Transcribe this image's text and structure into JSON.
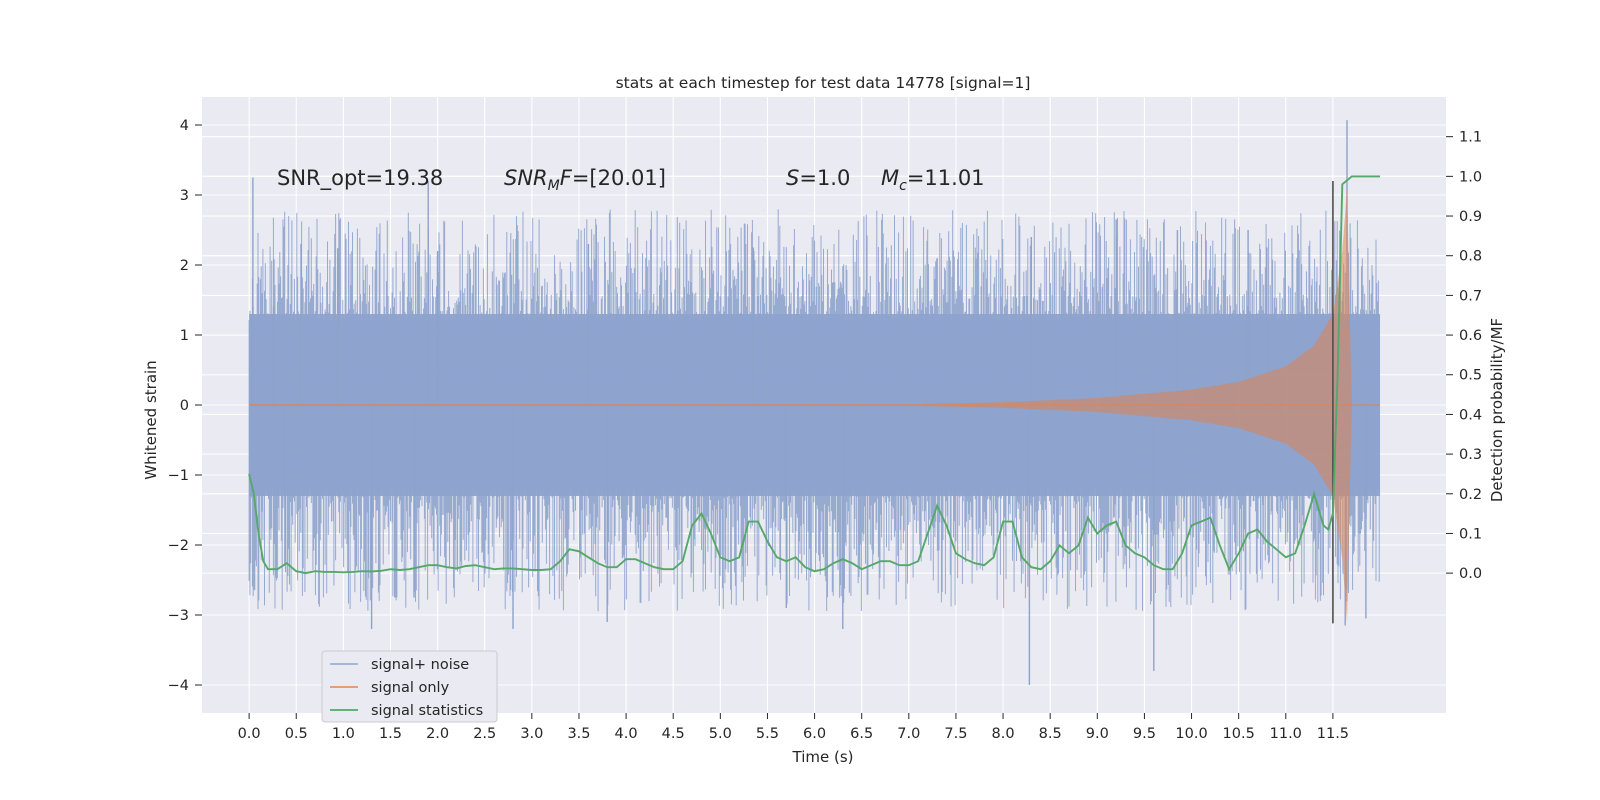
{
  "chart_data": {
    "type": "line",
    "title": "stats at each timestep for test data 14778 [signal=1]",
    "xlabel": "Time (s)",
    "ylabel": "Whitened strain",
    "ylabel_right": "Detection probability/MF",
    "xlim": [
      -0.5,
      12.7
    ],
    "ylim": [
      -4.4,
      4.4
    ],
    "ylim_right": [
      -0.3525,
      1.2
    ],
    "x_ticks": [
      0.0,
      0.5,
      1.0,
      1.5,
      2.0,
      2.5,
      3.0,
      3.5,
      4.0,
      4.5,
      5.0,
      5.5,
      6.0,
      6.5,
      7.0,
      7.5,
      8.0,
      8.5,
      9.0,
      9.5,
      10.0,
      10.5,
      11.0,
      11.5
    ],
    "x_tick_labels": [
      "0.0",
      "0.5",
      "1.0",
      "1.5",
      "2.0",
      "2.5",
      "3.0",
      "3.5",
      "4.0",
      "4.5",
      "5.0",
      "5.5",
      "6.0",
      "6.5",
      "7.0",
      "7.5",
      "8.0",
      "8.5",
      "9.0",
      "9.5",
      "10.0",
      "10.5",
      "11.0",
      "11.5"
    ],
    "y_ticks": [
      4,
      3,
      2,
      1,
      0,
      -1,
      -2,
      -3,
      -4
    ],
    "y_tick_labels": [
      "4",
      "3",
      "2",
      "1",
      "0",
      "−1",
      "−2",
      "−3",
      "−4"
    ],
    "y_right_ticks": [
      1.1,
      1.0,
      0.9,
      0.8,
      0.7,
      0.6,
      0.5,
      0.4,
      0.3,
      0.2,
      0.1,
      0.0
    ],
    "y_right_tick_labels": [
      "1.1",
      "1.0",
      "0.9",
      "0.8",
      "0.7",
      "0.6",
      "0.5",
      "0.4",
      "0.3",
      "0.2",
      "0.1",
      "0.0"
    ],
    "grid": true,
    "legend_position": "lower-left",
    "annotations": {
      "snr_opt": "SNR_opt=19.38",
      "snr_mf_main": "SNR",
      "snr_mf_sub": "M",
      "snr_mf_rest": "F",
      "snr_mf_value": "=[20.01]",
      "s_symbol": "S",
      "s_value": "=1.0",
      "mc_symbol": "M",
      "mc_sub": "c",
      "mc_value": "=11.01"
    },
    "detection_marker_x": 11.5,
    "series": [
      {
        "name": "signal+ noise",
        "color": "#8ea3cc",
        "kind": "noise-band",
        "x_range": [
          0.0,
          12.0
        ],
        "core_band": 1.3,
        "tall_peak_values": [
          [
            0.04,
            3.25
          ],
          [
            0.26,
            1.4
          ],
          [
            0.55,
            2.3
          ],
          [
            0.94,
            2.24
          ],
          [
            1.9,
            3.2
          ],
          [
            2.0,
            2.2
          ],
          [
            3.6,
            2.3
          ],
          [
            5.35,
            2.25
          ],
          [
            8.3,
            2.4
          ],
          [
            9.2,
            2.65
          ],
          [
            9.85,
            2.5
          ],
          [
            10.6,
            2.5
          ],
          [
            10.8,
            2.25
          ],
          [
            11.65,
            4.07
          ],
          [
            0.38,
            -2.3
          ],
          [
            1.3,
            -3.2
          ],
          [
            1.75,
            -2.75
          ],
          [
            2.8,
            -3.2
          ],
          [
            3.8,
            -3.1
          ],
          [
            5.7,
            -2.9
          ],
          [
            6.3,
            -3.2
          ],
          [
            8.28,
            -4.0
          ],
          [
            9.6,
            -3.8
          ],
          [
            11.63,
            -3.15
          ],
          [
            11.85,
            -3.05
          ]
        ]
      },
      {
        "name": "signal only",
        "color": "#dd8452",
        "kind": "chirp",
        "envelope": [
          [
            0,
            0.01
          ],
          [
            7.0,
            0.01
          ],
          [
            8.0,
            0.04
          ],
          [
            9.0,
            0.1
          ],
          [
            10.0,
            0.22
          ],
          [
            10.5,
            0.33
          ],
          [
            11.0,
            0.55
          ],
          [
            11.3,
            0.85
          ],
          [
            11.5,
            1.3
          ],
          [
            11.6,
            2.2
          ],
          [
            11.65,
            3.1
          ],
          [
            11.7,
            0.0
          ],
          [
            12.0,
            0.0
          ]
        ]
      },
      {
        "name": "signal statistics",
        "color": "#55a868",
        "axis": "right",
        "x": [
          0.0,
          0.05,
          0.1,
          0.15,
          0.2,
          0.3,
          0.4,
          0.5,
          0.6,
          0.7,
          0.8,
          0.9,
          1.0,
          1.1,
          1.2,
          1.3,
          1.4,
          1.5,
          1.6,
          1.7,
          1.8,
          1.9,
          2.0,
          2.1,
          2.2,
          2.3,
          2.4,
          2.5,
          2.6,
          2.7,
          2.8,
          2.9,
          3.0,
          3.1,
          3.2,
          3.3,
          3.4,
          3.5,
          3.6,
          3.7,
          3.8,
          3.9,
          4.0,
          4.1,
          4.2,
          4.3,
          4.4,
          4.5,
          4.6,
          4.7,
          4.8,
          4.9,
          5.0,
          5.1,
          5.2,
          5.3,
          5.4,
          5.5,
          5.6,
          5.7,
          5.8,
          5.9,
          6.0,
          6.1,
          6.2,
          6.3,
          6.4,
          6.5,
          6.6,
          6.7,
          6.8,
          6.9,
          7.0,
          7.1,
          7.2,
          7.3,
          7.4,
          7.5,
          7.6,
          7.7,
          7.8,
          7.9,
          8.0,
          8.1,
          8.2,
          8.3,
          8.4,
          8.5,
          8.6,
          8.7,
          8.8,
          8.9,
          9.0,
          9.1,
          9.2,
          9.3,
          9.4,
          9.5,
          9.6,
          9.7,
          9.8,
          9.9,
          10.0,
          10.1,
          10.2,
          10.3,
          10.4,
          10.5,
          10.6,
          10.7,
          10.8,
          10.9,
          11.0,
          11.1,
          11.2,
          11.3,
          11.4,
          11.45,
          11.5,
          11.55,
          11.6,
          11.7,
          11.8,
          11.9,
          12.0
        ],
        "values": [
          0.25,
          0.2,
          0.1,
          0.03,
          0.01,
          0.01,
          0.025,
          0.005,
          0.0,
          0.005,
          0.003,
          0.003,
          0.002,
          0.003,
          0.005,
          0.004,
          0.006,
          0.01,
          0.008,
          0.01,
          0.015,
          0.02,
          0.02,
          0.015,
          0.012,
          0.018,
          0.02,
          0.015,
          0.01,
          0.012,
          0.012,
          0.01,
          0.008,
          0.008,
          0.01,
          0.03,
          0.06,
          0.055,
          0.04,
          0.025,
          0.015,
          0.015,
          0.035,
          0.035,
          0.025,
          0.015,
          0.01,
          0.01,
          0.03,
          0.12,
          0.15,
          0.1,
          0.04,
          0.03,
          0.04,
          0.13,
          0.13,
          0.08,
          0.04,
          0.03,
          0.04,
          0.015,
          0.005,
          0.01,
          0.025,
          0.035,
          0.025,
          0.01,
          0.02,
          0.03,
          0.03,
          0.02,
          0.02,
          0.03,
          0.1,
          0.17,
          0.12,
          0.05,
          0.035,
          0.025,
          0.02,
          0.04,
          0.13,
          0.13,
          0.04,
          0.015,
          0.01,
          0.03,
          0.07,
          0.05,
          0.07,
          0.14,
          0.1,
          0.12,
          0.13,
          0.07,
          0.05,
          0.04,
          0.02,
          0.01,
          0.01,
          0.05,
          0.12,
          0.13,
          0.14,
          0.07,
          0.01,
          0.05,
          0.1,
          0.11,
          0.08,
          0.06,
          0.04,
          0.05,
          0.12,
          0.2,
          0.12,
          0.11,
          0.15,
          0.5,
          0.98,
          1.0,
          1.0,
          1.0,
          1.0
        ]
      }
    ]
  }
}
